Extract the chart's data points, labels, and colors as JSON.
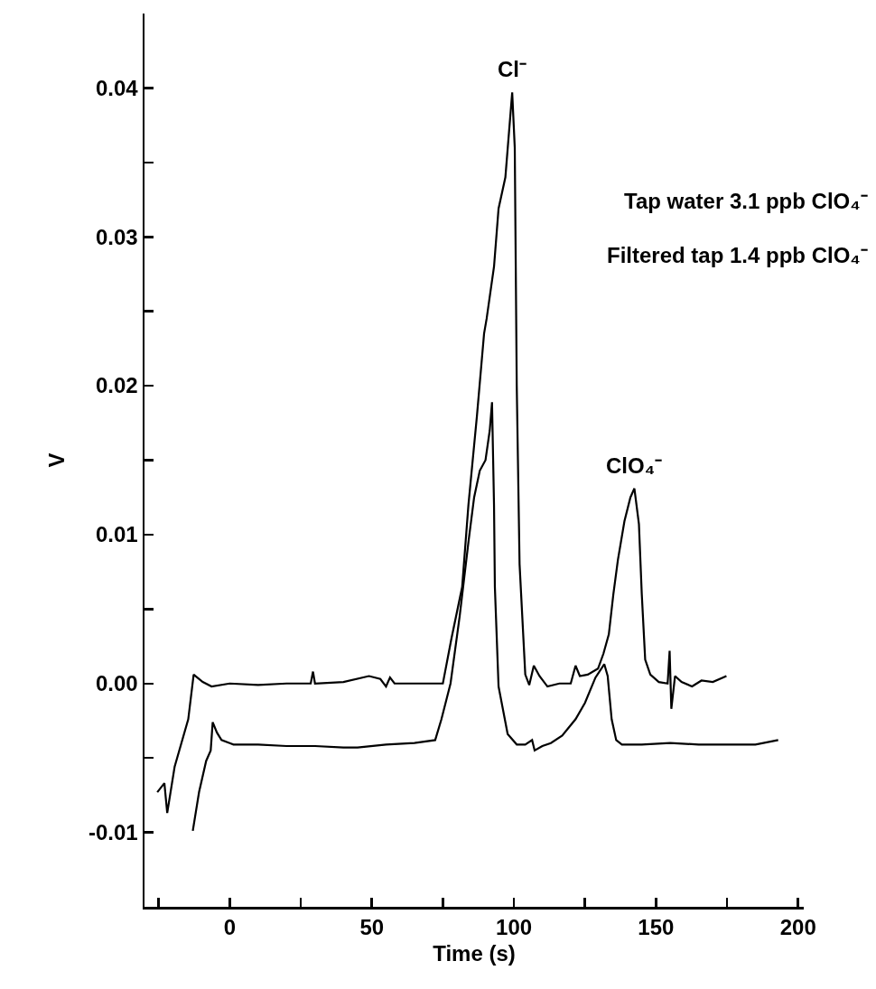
{
  "chart_data": {
    "type": "line",
    "xlabel": "Time (s)",
    "ylabel": "V",
    "xlim": [
      -30,
      202
    ],
    "ylim": [
      -0.015,
      0.045
    ],
    "xticks": [
      {
        "value": -25,
        "label": null
      },
      0,
      {
        "value": 25,
        "label": null
      },
      50,
      {
        "value": 75,
        "label": null
      },
      100,
      {
        "value": 125,
        "label": null
      },
      150,
      {
        "value": 175,
        "label": null
      },
      200
    ],
    "yticks": [
      -0.01,
      {
        "value": -0.005,
        "label": null
      },
      {
        "value": 0,
        "label": "0.00"
      },
      {
        "value": 0.005,
        "label": null
      },
      0.01,
      {
        "value": 0.015,
        "label": null
      },
      0.02,
      {
        "value": 0.025,
        "label": null
      },
      0.03,
      {
        "value": 0.035,
        "label": null
      },
      0.04
    ],
    "grid": false,
    "marker": "none",
    "line_style": "solid",
    "series": [
      {
        "color": "#000000",
        "x": [
          -25.5,
          -23,
          -22,
          -19.4,
          -14.6,
          -12.7,
          -9.5,
          -6.4,
          0,
          10,
          20,
          28.5,
          29.3,
          30,
          40,
          49,
          53,
          55,
          56.4,
          58,
          65,
          75,
          78,
          81.8,
          84,
          87,
          89.5,
          90.4,
          93,
          94.6,
          97,
          99.4,
          100.3,
          101,
          102,
          104,
          105.4,
          107,
          109,
          111.8,
          116,
          120,
          121.7,
          123.2,
          126,
          129.6,
          131.5,
          133.4,
          135,
          136.6,
          138.9,
          141,
          142.4,
          144,
          145,
          146.2,
          148,
          151,
          154.1,
          154.8,
          155.4,
          156.7,
          159,
          162.7,
          166,
          170,
          174.8
        ],
        "values": [
          -0.0073,
          -0.0067,
          -0.0087,
          -0.0056,
          -0.0024,
          0.0006,
          0.0001,
          -0.0002,
          0,
          -0.0001,
          0,
          0,
          0.0008,
          0,
          0.0001,
          0.0005,
          0.0003,
          -0.0002,
          0.0004,
          0,
          0,
          0,
          0.003,
          0.0065,
          0.012,
          0.018,
          0.0235,
          0.0245,
          0.028,
          0.0319,
          0.034,
          0.0397,
          0.036,
          0.02,
          0.008,
          0.0006,
          -0.0001,
          0.0012,
          0.0005,
          -0.0002,
          0,
          0,
          0.0012,
          0.0005,
          0.0006,
          0.001,
          0.002,
          0.0033,
          0.006,
          0.0083,
          0.0109,
          0.0125,
          0.0131,
          0.0107,
          0.006,
          0.0016,
          0.0006,
          0.0001,
          0,
          0.0022,
          -0.0017,
          0.0005,
          0.0001,
          -0.0002,
          0.0002,
          0.0001,
          0.0005
        ]
      },
      {
        "color": "#000000",
        "x": [
          -13,
          -10.8,
          -8.3,
          -6.7,
          -6,
          -4.5,
          -2.9,
          1.3,
          10,
          20,
          30,
          40,
          45,
          55,
          65,
          72.3,
          74.5,
          77.7,
          80.9,
          84,
          86,
          88,
          90,
          91.5,
          92.3,
          93,
          93.3,
          94.6,
          97.8,
          101,
          104,
          106.4,
          107.3,
          110,
          113,
          117,
          121.7,
          125,
          128.7,
          131.8,
          133,
          134.4,
          136,
          138,
          145,
          155,
          165,
          175,
          185,
          193
        ],
        "values": [
          -0.0099,
          -0.0073,
          -0.0052,
          -0.0045,
          -0.0026,
          -0.0033,
          -0.0038,
          -0.0041,
          -0.0041,
          -0.0042,
          -0.0042,
          -0.0043,
          -0.0043,
          -0.0041,
          -0.004,
          -0.0038,
          -0.0024,
          0,
          0.0045,
          0.0095,
          0.0125,
          0.0143,
          0.015,
          0.017,
          0.0189,
          0.012,
          0.0065,
          -0.0002,
          -0.0034,
          -0.0041,
          -0.0041,
          -0.0038,
          -0.0045,
          -0.0042,
          -0.004,
          -0.0035,
          -0.0024,
          -0.0013,
          0.0004,
          0.0013,
          0.0005,
          -0.0024,
          -0.0038,
          -0.0041,
          -0.0041,
          -0.004,
          -0.0041,
          -0.0041,
          -0.0041,
          -0.0038
        ]
      }
    ],
    "annotations": [
      {
        "text": "Cl⁻",
        "x": 99.4,
        "y": 0.0397
      },
      {
        "text": "ClO₄⁻",
        "x": 142.4,
        "y": 0.0131
      },
      "Tap water 3.1 ppb ClO₄⁻",
      "Filtered tap 1.4 ppb ClO₄⁻"
    ]
  }
}
